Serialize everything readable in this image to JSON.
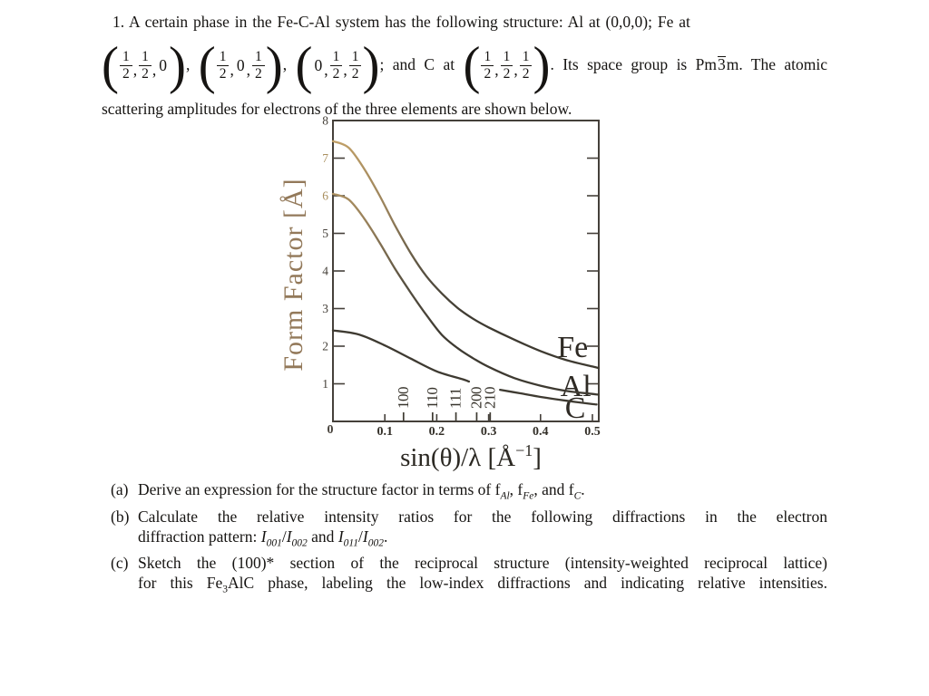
{
  "document": {
    "problem": {
      "line1": "1. A certain phase in the Fe-C-Al system has the following structure: Al at (0,0,0); Fe at",
      "line2_parts": [
        {
          "triple": [
            "1/2",
            "1/2",
            "0"
          ]
        },
        {
          "t": ",  "
        },
        {
          "triple": [
            "1/2",
            "0",
            "1/2"
          ]
        },
        {
          "t": ",  "
        },
        {
          "triple": [
            "0",
            "1/2",
            "1/2"
          ]
        },
        {
          "t": ";  and  C  at "
        },
        {
          "triple": [
            "1/2",
            "1/2",
            "1/2"
          ]
        },
        {
          "t": ".  Its  space  group  is  Pm"
        },
        {
          "ol": "3"
        },
        {
          "t": "m.  The  atomic"
        }
      ],
      "line3": "scattering amplitudes for electrons of the three elements are shown below."
    },
    "questions": {
      "a": {
        "label": "(a)",
        "parts": [
          {
            "t": "Derive an expression for the structure factor in terms of f"
          },
          {
            "sub": "Al"
          },
          {
            "t": ", f"
          },
          {
            "sub": "Fe"
          },
          {
            "t": ", and f"
          },
          {
            "sub": "C"
          },
          {
            "t": "."
          }
        ]
      },
      "b": {
        "label": "(b)",
        "line1": "Calculate the relative intensity ratios for the following diffractions in the electron",
        "line2_parts": [
          {
            "t": "diffraction pattern: "
          },
          {
            "i": "I"
          },
          {
            "sub": "001"
          },
          {
            "t": "/"
          },
          {
            "i": "I"
          },
          {
            "sub": "002"
          },
          {
            "t": " and "
          },
          {
            "i": "I"
          },
          {
            "sub": "011"
          },
          {
            "t": "/"
          },
          {
            "i": "I"
          },
          {
            "sub": "002"
          },
          {
            "t": "."
          }
        ]
      },
      "c": {
        "label": "(c)",
        "line1": "Sketch the (100)* section of the reciprocal structure (intensity-weighted reciprocal lattice)",
        "line2_parts": [
          {
            "t": "for this Fe"
          },
          {
            "subr": "3"
          },
          {
            "t": "AlC phase, labeling the low-index diffractions and indicating relative intensities."
          }
        ]
      }
    }
  },
  "chart_data": {
    "type": "line",
    "title": "",
    "xlabel_parts": {
      "main": "sin(θ)/λ  [Å",
      "sup": "−1",
      "close": "]"
    },
    "ylabel": "Form Factor [Å]",
    "xlim": [
      0,
      0.512
    ],
    "ylim": [
      0,
      8
    ],
    "xticks": [
      0,
      0.1,
      0.2,
      0.3,
      0.4,
      0.5
    ],
    "yticks": [
      0,
      1,
      2,
      3,
      4,
      5,
      6,
      7,
      8
    ],
    "grid": false,
    "legend_position": "curve-end-labels",
    "hkl_marks": [
      {
        "label": "100",
        "x": 0.136
      },
      {
        "label": "110",
        "x": 0.192
      },
      {
        "label": "111",
        "x": 0.237
      },
      {
        "label": "200",
        "x": 0.277
      },
      {
        "label": "210",
        "x": 0.303
      }
    ],
    "series": [
      {
        "name": "Fe",
        "label": "Fe",
        "label_pos": [
          0.462,
          1.71
        ],
        "segments": [
          [
            [
              0,
              7.45
            ],
            [
              0.03,
              7.28
            ],
            [
              0.06,
              6.72
            ],
            [
              0.09,
              6.0
            ],
            [
              0.12,
              5.2
            ],
            [
              0.15,
              4.47
            ],
            [
              0.18,
              3.86
            ],
            [
              0.21,
              3.4
            ],
            [
              0.24,
              3.02
            ],
            [
              0.27,
              2.73
            ],
            [
              0.3,
              2.5
            ],
            [
              0.35,
              2.17
            ],
            [
              0.4,
              1.87
            ],
            [
              0.45,
              1.63
            ],
            [
              0.5,
              1.46
            ],
            [
              0.512,
              1.42
            ]
          ]
        ]
      },
      {
        "name": "Al",
        "label": "Al",
        "label_pos": [
          0.468,
          0.675
        ],
        "segments": [
          [
            [
              0,
              6.05
            ],
            [
              0.03,
              5.9
            ],
            [
              0.06,
              5.4
            ],
            [
              0.09,
              4.75
            ],
            [
              0.12,
              4.05
            ],
            [
              0.15,
              3.42
            ],
            [
              0.18,
              2.83
            ],
            [
              0.21,
              2.3
            ],
            [
              0.24,
              1.95
            ],
            [
              0.27,
              1.68
            ],
            [
              0.3,
              1.45
            ],
            [
              0.35,
              1.15
            ],
            [
              0.4,
              0.95
            ],
            [
              0.45,
              0.81
            ],
            [
              0.5,
              0.73
            ],
            [
              0.512,
              0.71
            ]
          ]
        ]
      },
      {
        "name": "C",
        "label": "C",
        "label_pos": [
          0.467,
          0.1
        ],
        "segments": [
          [
            [
              0,
              2.42
            ],
            [
              0.05,
              2.31
            ],
            [
              0.1,
              2.02
            ],
            [
              0.15,
              1.67
            ],
            [
              0.2,
              1.33
            ],
            [
              0.25,
              1.12
            ],
            [
              0.262,
              1.06
            ]
          ],
          [
            [
              0.322,
              0.84
            ],
            [
              0.36,
              0.75
            ],
            [
              0.4,
              0.65
            ],
            [
              0.45,
              0.55
            ],
            [
              0.5,
              0.46
            ],
            [
              0.508,
              0.45
            ]
          ]
        ]
      }
    ],
    "colors": {
      "ink": "#3e3a31",
      "frame": "#45403a",
      "sepia": "#c2a168",
      "axis_label_tan": "#93795a",
      "tick_dark": "#46413a",
      "tick_tan": "#a98f5e",
      "tan_yticks": [
        6,
        7
      ]
    }
  }
}
